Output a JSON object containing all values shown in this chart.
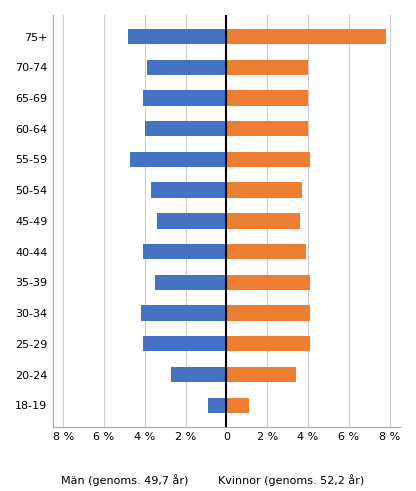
{
  "age_groups": [
    "18-19",
    "20-24",
    "25-29",
    "30-34",
    "35-39",
    "40-44",
    "45-49",
    "50-54",
    "55-59",
    "60-64",
    "65-69",
    "70-74",
    "75+"
  ],
  "men_values": [
    -0.9,
    -2.7,
    -4.1,
    -4.2,
    -3.5,
    -4.1,
    -3.4,
    -3.7,
    -4.7,
    -4.0,
    -4.1,
    -3.9,
    -4.8
  ],
  "women_values": [
    1.1,
    3.4,
    4.1,
    4.1,
    4.1,
    3.9,
    3.6,
    3.7,
    4.1,
    4.0,
    4.0,
    4.0,
    7.8
  ],
  "men_color": "#4472C4",
  "women_color": "#ED7D31",
  "xlabel_left": "Män (genoms. 49,7 år)",
  "xlabel_right": "Kvinnor (genoms. 52,2 år)",
  "xlim": [
    -8.5,
    8.5
  ],
  "xticks": [
    -8,
    -6,
    -4,
    -2,
    0,
    2,
    4,
    6,
    8
  ],
  "xtick_labels": [
    "8 %",
    "6 %",
    "4 %",
    "2 %",
    "0",
    "2 %",
    "4 %",
    "6 %",
    "8 %"
  ],
  "background_color": "#ffffff",
  "grid_color": "#cccccc",
  "bar_height": 0.5,
  "label_fontsize": 8,
  "tick_fontsize": 8
}
